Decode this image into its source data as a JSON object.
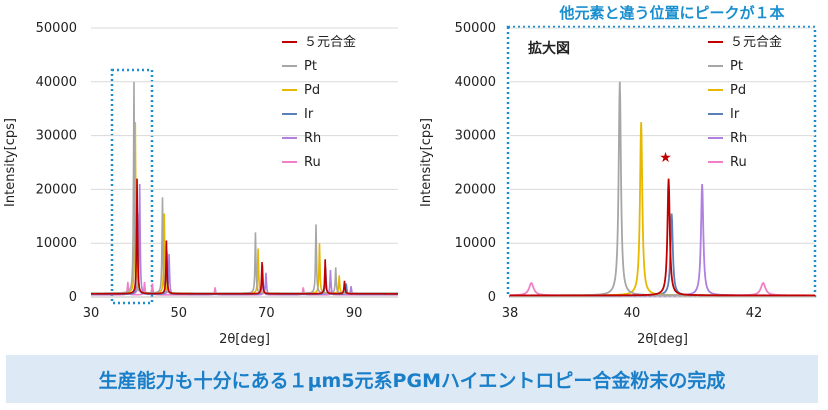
{
  "headline": "他元素と違う位置にピークが１本",
  "banner": "生産能力も十分にある１μm5元系PGMハイエントロピー合金粉末の完成",
  "chart_data": [
    {
      "type": "line",
      "xlabel": "2θ[deg]",
      "ylabel": "Intensity[cps]",
      "xlim": [
        30,
        100
      ],
      "ylim": [
        0,
        50000
      ],
      "x_ticks": [
        30,
        50,
        70,
        90
      ],
      "y_ticks": [
        0,
        10000,
        20000,
        30000,
        40000,
        50000
      ],
      "grid": "horizontal",
      "legend": "top-right",
      "series": [
        {
          "name": "５元合金",
          "color": "#c00000",
          "baseline": 600,
          "width": 0.25,
          "peaks": [
            [
              40.5,
              22000
            ],
            [
              47.2,
              10500
            ],
            [
              69.0,
              6500
            ],
            [
              83.4,
              7000
            ],
            [
              87.8,
              3000
            ]
          ]
        },
        {
          "name": "Pt",
          "color": "#a6a6a6",
          "baseline": 700,
          "width": 0.25,
          "peaks": [
            [
              39.8,
              40000
            ],
            [
              46.3,
              18500
            ],
            [
              67.5,
              12000
            ],
            [
              81.3,
              13500
            ],
            [
              85.8,
              5500
            ]
          ]
        },
        {
          "name": "Pd",
          "color": "#e6b800",
          "baseline": 700,
          "width": 0.25,
          "peaks": [
            [
              40.1,
              32500
            ],
            [
              46.7,
              15500
            ],
            [
              68.1,
              9000
            ],
            [
              82.1,
              10000
            ],
            [
              86.6,
              4000
            ]
          ]
        },
        {
          "name": "Ir",
          "color": "#5b7fb8",
          "baseline": 500,
          "width": 0.25,
          "peaks": [
            [
              40.6,
              15500
            ],
            [
              47.3,
              8500
            ],
            [
              69.1,
              6000
            ],
            [
              83.5,
              5500
            ],
            [
              88.2,
              2500
            ]
          ]
        },
        {
          "name": "Rh",
          "color": "#b07fe0",
          "baseline": 500,
          "width": 0.25,
          "peaks": [
            [
              41.1,
              21000
            ],
            [
              47.8,
              8000
            ],
            [
              69.9,
              4500
            ],
            [
              84.6,
              5000
            ],
            [
              89.3,
              2000
            ]
          ]
        },
        {
          "name": "Ru",
          "color": "#f07fc8",
          "baseline": 400,
          "width": 0.25,
          "peaks": [
            [
              38.4,
              2800
            ],
            [
              42.2,
              2800
            ],
            [
              44.0,
              2500
            ],
            [
              58.3,
              1800
            ],
            [
              69.4,
              2000
            ],
            [
              78.4,
              1800
            ],
            [
              84.8,
              1200
            ]
          ]
        }
      ]
    },
    {
      "type": "line",
      "title": "拡大図",
      "xlabel": "2θ[deg]",
      "ylabel": "Intensity[cps]",
      "xlim": [
        38,
        43
      ],
      "ylim": [
        0,
        50000
      ],
      "x_ticks": [
        38,
        40,
        42
      ],
      "y_ticks": [
        0,
        10000,
        20000,
        30000,
        40000,
        50000
      ],
      "grid": "horizontal",
      "legend": "top-right",
      "annotation": "★",
      "annotation_at": [
        40.55,
        26000
      ],
      "series": [
        {
          "name": "５元合金",
          "color": "#c00000",
          "baseline": 300,
          "width": 0.045,
          "peaks": [
            [
              40.6,
              22000
            ]
          ]
        },
        {
          "name": "Pt",
          "color": "#a6a6a6",
          "baseline": 300,
          "width": 0.045,
          "peaks": [
            [
              39.8,
              40000
            ]
          ]
        },
        {
          "name": "Pd",
          "color": "#e6b800",
          "baseline": 300,
          "width": 0.045,
          "peaks": [
            [
              40.15,
              32500
            ]
          ]
        },
        {
          "name": "Ir",
          "color": "#5b7fb8",
          "baseline": 300,
          "width": 0.045,
          "peaks": [
            [
              40.65,
              15500
            ]
          ]
        },
        {
          "name": "Rh",
          "color": "#b07fe0",
          "baseline": 300,
          "width": 0.045,
          "peaks": [
            [
              41.15,
              21000
            ]
          ]
        },
        {
          "name": "Ru",
          "color": "#f07fc8",
          "baseline": 300,
          "width": 0.09,
          "peaks": [
            [
              38.35,
              2600
            ],
            [
              42.15,
              2600
            ]
          ]
        }
      ]
    }
  ]
}
